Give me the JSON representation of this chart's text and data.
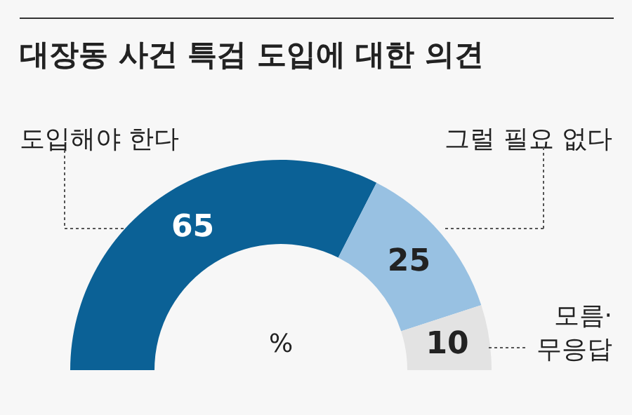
{
  "chart_data": {
    "type": "donut",
    "title": "대장동 사건 특검 도입에 대한 의견",
    "categories": [
      "도입해야 한다",
      "그럴 필요 없다",
      "모름·\n무응답"
    ],
    "values": [
      65,
      25,
      10
    ],
    "colors": [
      "#0b6196",
      "#98c1e2",
      "#e3e3e3"
    ],
    "data_labels": true,
    "annotations": [
      "%"
    ]
  }
}
